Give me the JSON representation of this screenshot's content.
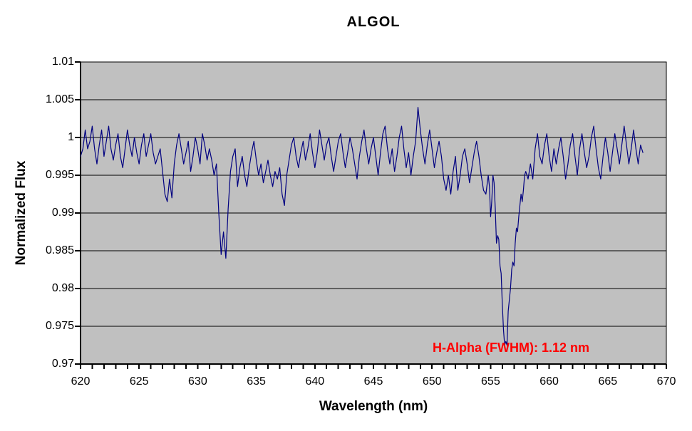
{
  "chart_data": {
    "type": "line",
    "title": "ALGOL",
    "xlabel": "Wavelength (nm)",
    "ylabel": "Normalized Flux",
    "xlim": [
      620,
      670
    ],
    "ylim": [
      0.97,
      1.01
    ],
    "x_major_ticks": [
      620,
      625,
      630,
      635,
      640,
      645,
      650,
      655,
      660,
      665,
      670
    ],
    "x_minor_tick_step": 1,
    "y_ticks": [
      0.97,
      0.975,
      0.98,
      0.985,
      0.99,
      0.995,
      1,
      1.005,
      1.01
    ],
    "y_tick_labels": [
      "0.97",
      "0.975",
      "0.98",
      "0.985",
      "0.99",
      "0.995",
      "1",
      "1.005",
      "1.01"
    ],
    "grid": "horizontal-only",
    "legend": "none",
    "plot_bg_color": "#C0C0C0",
    "grid_color": "#000000",
    "line_color": "#000080",
    "annotation": {
      "text": "H-Alpha (FWHM): 1.12 nm",
      "color": "#FF0000",
      "x_nm": 656.7,
      "y_flux": 0.9712
    },
    "features_note": "absorption dips near 627.4 nm (0.9915), 632.3 nm (0.984), 637.3 nm (0.991), 651-655 nm shallow (0.992-0.995), H-alpha 656.3 nm (min 0.9725, FWHM 1.12 nm); continuum ~0.998-1.000; data span 620-668 nm",
    "series": [
      {
        "points": [
          [
            620.0,
            0.9975
          ],
          [
            620.2,
            0.9985
          ],
          [
            620.4,
            1.001
          ],
          [
            620.6,
            0.9985
          ],
          [
            620.8,
            0.9995
          ],
          [
            621.0,
            1.0015
          ],
          [
            621.2,
            0.9985
          ],
          [
            621.4,
            0.9965
          ],
          [
            621.6,
            0.999
          ],
          [
            621.8,
            1.001
          ],
          [
            622.0,
            0.9975
          ],
          [
            622.2,
            0.9995
          ],
          [
            622.4,
            1.0015
          ],
          [
            622.6,
            0.9985
          ],
          [
            622.8,
            0.997
          ],
          [
            623.0,
            0.999
          ],
          [
            623.2,
            1.0005
          ],
          [
            623.4,
            0.9975
          ],
          [
            623.6,
            0.996
          ],
          [
            623.8,
            0.9985
          ],
          [
            624.0,
            1.001
          ],
          [
            624.2,
            0.999
          ],
          [
            624.4,
            0.9975
          ],
          [
            624.6,
            1.0
          ],
          [
            624.8,
            0.998
          ],
          [
            625.0,
            0.9965
          ],
          [
            625.2,
            0.999
          ],
          [
            625.4,
            1.0005
          ],
          [
            625.6,
            0.9975
          ],
          [
            625.8,
            0.999
          ],
          [
            626.0,
            1.0005
          ],
          [
            626.2,
            0.998
          ],
          [
            626.4,
            0.9965
          ],
          [
            626.6,
            0.9975
          ],
          [
            626.8,
            0.9985
          ],
          [
            627.0,
            0.9955
          ],
          [
            627.2,
            0.9925
          ],
          [
            627.4,
            0.9915
          ],
          [
            627.6,
            0.9945
          ],
          [
            627.8,
            0.992
          ],
          [
            628.0,
            0.9965
          ],
          [
            628.2,
            0.999
          ],
          [
            628.4,
            1.0005
          ],
          [
            628.6,
            0.9985
          ],
          [
            628.8,
            0.9965
          ],
          [
            629.0,
            0.998
          ],
          [
            629.2,
            0.9995
          ],
          [
            629.4,
            0.9955
          ],
          [
            629.6,
            0.9975
          ],
          [
            629.8,
            1.0
          ],
          [
            630.0,
            0.9985
          ],
          [
            630.2,
            0.9965
          ],
          [
            630.4,
            1.0005
          ],
          [
            630.6,
            0.999
          ],
          [
            630.8,
            0.997
          ],
          [
            631.0,
            0.9985
          ],
          [
            631.2,
            0.997
          ],
          [
            631.4,
            0.995
          ],
          [
            631.6,
            0.9965
          ],
          [
            631.8,
            0.99
          ],
          [
            632.0,
            0.9845
          ],
          [
            632.2,
            0.9875
          ],
          [
            632.4,
            0.984
          ],
          [
            632.6,
            0.9905
          ],
          [
            632.8,
            0.9955
          ],
          [
            633.0,
            0.9975
          ],
          [
            633.2,
            0.9985
          ],
          [
            633.4,
            0.9935
          ],
          [
            633.6,
            0.996
          ],
          [
            633.8,
            0.9975
          ],
          [
            634.0,
            0.995
          ],
          [
            634.2,
            0.9935
          ],
          [
            634.4,
            0.996
          ],
          [
            634.6,
            0.998
          ],
          [
            634.8,
            0.9995
          ],
          [
            635.0,
            0.997
          ],
          [
            635.2,
            0.995
          ],
          [
            635.4,
            0.9965
          ],
          [
            635.6,
            0.994
          ],
          [
            635.8,
            0.9955
          ],
          [
            636.0,
            0.997
          ],
          [
            636.2,
            0.995
          ],
          [
            636.4,
            0.9935
          ],
          [
            636.6,
            0.9955
          ],
          [
            636.8,
            0.9945
          ],
          [
            637.0,
            0.996
          ],
          [
            637.2,
            0.9925
          ],
          [
            637.4,
            0.991
          ],
          [
            637.6,
            0.995
          ],
          [
            637.8,
            0.997
          ],
          [
            638.0,
            0.999
          ],
          [
            638.2,
            1.0
          ],
          [
            638.4,
            0.9975
          ],
          [
            638.6,
            0.996
          ],
          [
            638.8,
            0.998
          ],
          [
            639.0,
            0.9995
          ],
          [
            639.2,
            0.997
          ],
          [
            639.4,
            0.9985
          ],
          [
            639.6,
            1.0005
          ],
          [
            639.8,
            0.998
          ],
          [
            640.0,
            0.996
          ],
          [
            640.2,
            0.998
          ],
          [
            640.4,
            1.001
          ],
          [
            640.6,
            0.999
          ],
          [
            640.8,
            0.997
          ],
          [
            641.0,
            0.999
          ],
          [
            641.2,
            1.0
          ],
          [
            641.4,
            0.9975
          ],
          [
            641.6,
            0.9955
          ],
          [
            641.8,
            0.9975
          ],
          [
            642.0,
            0.9995
          ],
          [
            642.2,
            1.0005
          ],
          [
            642.4,
            0.998
          ],
          [
            642.6,
            0.996
          ],
          [
            642.8,
            0.998
          ],
          [
            643.0,
            1.0
          ],
          [
            643.2,
            0.9985
          ],
          [
            643.4,
            0.9965
          ],
          [
            643.6,
            0.9945
          ],
          [
            643.8,
            0.9975
          ],
          [
            644.0,
            0.9995
          ],
          [
            644.2,
            1.001
          ],
          [
            644.4,
            0.9985
          ],
          [
            644.6,
            0.9965
          ],
          [
            644.8,
            0.9985
          ],
          [
            645.0,
            1.0
          ],
          [
            645.2,
            0.9975
          ],
          [
            645.4,
            0.995
          ],
          [
            645.6,
            0.998
          ],
          [
            645.8,
            1.0005
          ],
          [
            646.0,
            1.0015
          ],
          [
            646.2,
            0.9985
          ],
          [
            646.4,
            0.9965
          ],
          [
            646.6,
            0.9985
          ],
          [
            646.8,
            0.9955
          ],
          [
            647.0,
            0.9975
          ],
          [
            647.2,
            1.0
          ],
          [
            647.4,
            1.0015
          ],
          [
            647.6,
            0.9985
          ],
          [
            647.8,
            0.996
          ],
          [
            648.0,
            0.998
          ],
          [
            648.2,
            0.995
          ],
          [
            648.4,
            0.9975
          ],
          [
            648.6,
            0.9995
          ],
          [
            648.8,
            1.004
          ],
          [
            649.0,
            1.001
          ],
          [
            649.2,
            0.9985
          ],
          [
            649.4,
            0.9965
          ],
          [
            649.6,
            0.999
          ],
          [
            649.8,
            1.001
          ],
          [
            650.0,
            0.9985
          ],
          [
            650.2,
            0.996
          ],
          [
            650.4,
            0.998
          ],
          [
            650.6,
            0.9995
          ],
          [
            650.8,
            0.9975
          ],
          [
            651.0,
            0.9945
          ],
          [
            651.2,
            0.993
          ],
          [
            651.4,
            0.995
          ],
          [
            651.6,
            0.9925
          ],
          [
            651.8,
            0.9955
          ],
          [
            652.0,
            0.9975
          ],
          [
            652.2,
            0.993
          ],
          [
            652.4,
            0.995
          ],
          [
            652.6,
            0.9975
          ],
          [
            652.8,
            0.9985
          ],
          [
            653.0,
            0.9965
          ],
          [
            653.2,
            0.994
          ],
          [
            653.4,
            0.996
          ],
          [
            653.6,
            0.998
          ],
          [
            653.8,
            0.9995
          ],
          [
            654.0,
            0.9975
          ],
          [
            654.2,
            0.995
          ],
          [
            654.4,
            0.993
          ],
          [
            654.6,
            0.9925
          ],
          [
            654.8,
            0.995
          ],
          [
            654.9,
            0.9935
          ],
          [
            655.0,
            0.9895
          ],
          [
            655.1,
            0.9915
          ],
          [
            655.2,
            0.995
          ],
          [
            655.3,
            0.994
          ],
          [
            655.4,
            0.9905
          ],
          [
            655.5,
            0.986
          ],
          [
            655.6,
            0.987
          ],
          [
            655.7,
            0.9865
          ],
          [
            655.8,
            0.983
          ],
          [
            655.9,
            0.982
          ],
          [
            656.0,
            0.978
          ],
          [
            656.1,
            0.9745
          ],
          [
            656.2,
            0.9725
          ],
          [
            656.3,
            0.973
          ],
          [
            656.4,
            0.9725
          ],
          [
            656.5,
            0.977
          ],
          [
            656.6,
            0.9785
          ],
          [
            656.7,
            0.98
          ],
          [
            656.8,
            0.9825
          ],
          [
            656.9,
            0.9835
          ],
          [
            657.0,
            0.983
          ],
          [
            657.1,
            0.986
          ],
          [
            657.2,
            0.988
          ],
          [
            657.3,
            0.9875
          ],
          [
            657.4,
            0.9895
          ],
          [
            657.5,
            0.991
          ],
          [
            657.6,
            0.9925
          ],
          [
            657.7,
            0.9915
          ],
          [
            657.8,
            0.993
          ],
          [
            657.9,
            0.995
          ],
          [
            658.0,
            0.9955
          ],
          [
            658.2,
            0.9945
          ],
          [
            658.4,
            0.9965
          ],
          [
            658.6,
            0.9945
          ],
          [
            658.8,
            0.9985
          ],
          [
            659.0,
            1.0005
          ],
          [
            659.2,
            0.9975
          ],
          [
            659.4,
            0.9965
          ],
          [
            659.6,
            0.999
          ],
          [
            659.8,
            1.0005
          ],
          [
            660.0,
            0.9975
          ],
          [
            660.2,
            0.9955
          ],
          [
            660.4,
            0.9985
          ],
          [
            660.6,
            0.9965
          ],
          [
            660.8,
            0.9985
          ],
          [
            661.0,
            1.0
          ],
          [
            661.2,
            0.9975
          ],
          [
            661.4,
            0.9945
          ],
          [
            661.6,
            0.9965
          ],
          [
            661.8,
            0.999
          ],
          [
            662.0,
            1.0005
          ],
          [
            662.2,
            0.9975
          ],
          [
            662.4,
            0.995
          ],
          [
            662.6,
            0.9985
          ],
          [
            662.8,
            1.0005
          ],
          [
            663.0,
            0.998
          ],
          [
            663.2,
            0.996
          ],
          [
            663.4,
            0.9975
          ],
          [
            663.6,
            1.0
          ],
          [
            663.8,
            1.0015
          ],
          [
            664.0,
            0.9985
          ],
          [
            664.2,
            0.996
          ],
          [
            664.4,
            0.9945
          ],
          [
            664.6,
            0.9975
          ],
          [
            664.8,
            1.0
          ],
          [
            665.0,
            0.998
          ],
          [
            665.2,
            0.9955
          ],
          [
            665.4,
            0.998
          ],
          [
            665.6,
            1.0005
          ],
          [
            665.8,
            0.9985
          ],
          [
            666.0,
            0.9965
          ],
          [
            666.2,
            0.999
          ],
          [
            666.4,
            1.0015
          ],
          [
            666.6,
            0.999
          ],
          [
            666.8,
            0.9965
          ],
          [
            667.0,
            0.9985
          ],
          [
            667.2,
            1.001
          ],
          [
            667.4,
            0.9985
          ],
          [
            667.6,
            0.9965
          ],
          [
            667.8,
            0.999
          ],
          [
            668.0,
            0.998
          ]
        ]
      }
    ]
  }
}
